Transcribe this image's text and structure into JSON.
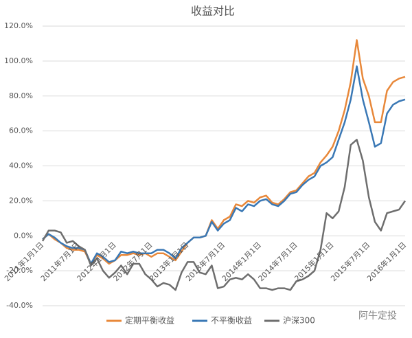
{
  "chart_data": {
    "type": "line",
    "title": "收益对比",
    "categories": [
      "2011年1月1日",
      null,
      null,
      null,
      null,
      null,
      "2011年7月1日",
      null,
      null,
      null,
      null,
      null,
      "2012年1月1日",
      null,
      null,
      null,
      null,
      null,
      "2012年7月1日",
      null,
      null,
      null,
      null,
      null,
      "2013年1月1日",
      null,
      null,
      null,
      null,
      null,
      "2013年7月1日",
      null,
      null,
      null,
      null,
      null,
      "2014年1月1日",
      null,
      null,
      null,
      null,
      null,
      "2014年7月1日",
      null,
      null,
      null,
      null,
      null,
      "2015年1月1日",
      null,
      null,
      null,
      null,
      null,
      "2015年7月1日",
      null,
      null,
      null,
      null,
      null,
      "2016年1月1日"
    ],
    "series": [
      {
        "name": "定期平衡收益",
        "color": "#e8883a",
        "values": [
          -2,
          1,
          -2,
          -4,
          -7,
          -8,
          -8,
          -9,
          -16,
          -11,
          -13,
          -16,
          -14,
          -11,
          -11,
          -10,
          -11,
          -10,
          -12,
          -10,
          -10,
          -12,
          -14,
          -9,
          -4,
          -1,
          -1,
          0,
          9,
          4,
          9,
          11,
          18,
          17,
          20,
          19,
          22,
          23,
          19,
          18,
          21,
          25,
          26,
          30,
          34,
          36,
          42,
          46,
          51,
          60,
          72,
          88,
          112,
          90,
          80,
          65,
          65,
          83,
          88,
          90,
          91
        ]
      },
      {
        "name": "不平衡收益",
        "color": "#3a78b5",
        "values": [
          -2,
          1,
          -1,
          -4,
          -6,
          -7,
          -7,
          -8,
          -16,
          -10,
          -12,
          -15,
          -14,
          -9,
          -10,
          -9,
          -10,
          -10,
          -10,
          -8,
          -8,
          -10,
          -13,
          -7,
          -4,
          -1,
          -1,
          0,
          8,
          3,
          7,
          9,
          16,
          14,
          18,
          17,
          20,
          21,
          18,
          17,
          20,
          24,
          25,
          29,
          32,
          34,
          40,
          42,
          45,
          55,
          65,
          78,
          97,
          78,
          65,
          51,
          53,
          70,
          75,
          77,
          78
        ]
      },
      {
        "name": "沪深300",
        "color": "#6e6e6e",
        "values": [
          -3,
          3,
          3,
          2,
          -4,
          -3,
          -6,
          -8,
          -17,
          -13,
          -20,
          -24,
          -21,
          -17,
          -22,
          -16,
          -16,
          -22,
          -25,
          -29,
          -27,
          -28,
          -31,
          -21,
          -15,
          -15,
          -21,
          -22,
          -17,
          -30,
          -29,
          -25,
          -24,
          -25,
          -22,
          -25,
          -30,
          -30,
          -31,
          -30,
          -30,
          -31,
          -26,
          -25,
          -23,
          -20,
          -8,
          13,
          10,
          14,
          28,
          52,
          55,
          43,
          22,
          8,
          3,
          13,
          14,
          15,
          20
        ]
      }
    ],
    "ylim": [
      -40,
      120
    ],
    "yticks": [
      {
        "value": -40,
        "label": "-40.0%"
      },
      {
        "value": -20,
        "label": "-20.0%"
      },
      {
        "value": 0,
        "label": "0.0%"
      },
      {
        "value": 20,
        "label": "20.0%"
      },
      {
        "value": 40,
        "label": "40.0%"
      },
      {
        "value": 60,
        "label": "60.0%"
      },
      {
        "value": 80,
        "label": "80.0%"
      },
      {
        "value": 100,
        "label": "100.0%"
      },
      {
        "value": 120,
        "label": "120.0%"
      }
    ],
    "grid": true,
    "legend": "bottom",
    "watermark": "阿牛定投"
  }
}
